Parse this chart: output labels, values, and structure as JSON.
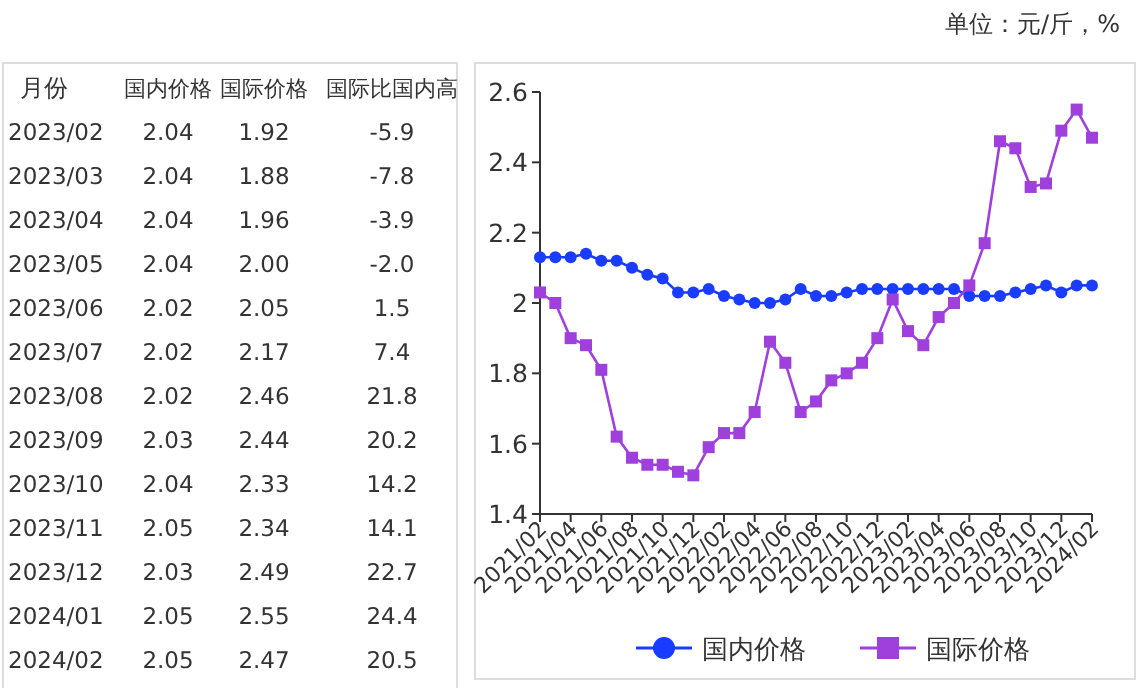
{
  "chart_data": [
    {
      "type": "other",
      "annotations": [
        "单位：元/斤，%"
      ],
      "xlabel": "月份",
      "categories": [
        "2023/02",
        "2023/03",
        "2023/04",
        "2023/05",
        "2023/06",
        "2023/07",
        "2023/08",
        "2023/09",
        "2023/10",
        "2023/11",
        "2023/12",
        "2024/01",
        "2024/02"
      ],
      "series": [
        {
          "name": "国内价格",
          "values": [
            2.04,
            2.04,
            2.04,
            2.04,
            2.02,
            2.02,
            2.02,
            2.03,
            2.04,
            2.05,
            2.03,
            2.05,
            2.05
          ],
          "value_labels": [
            "2.04",
            "2.04",
            "2.04",
            "2.04",
            "2.02",
            "2.02",
            "2.02",
            "2.03",
            "2.04",
            "2.05",
            "2.03",
            "2.05",
            "2.05"
          ]
        },
        {
          "name": "国际价格",
          "values": [
            1.92,
            1.88,
            1.96,
            2.0,
            2.05,
            2.17,
            2.46,
            2.44,
            2.33,
            2.34,
            2.49,
            2.55,
            2.47
          ],
          "value_labels": [
            "1.92",
            "1.88",
            "1.96",
            "2.00",
            "2.05",
            "2.17",
            "2.46",
            "2.44",
            "2.33",
            "2.34",
            "2.49",
            "2.55",
            "2.47"
          ]
        },
        {
          "name": "国际比国内高",
          "values": [
            -5.9,
            -7.8,
            -3.9,
            -2.0,
            1.5,
            7.4,
            21.8,
            20.2,
            14.2,
            14.1,
            22.7,
            24.4,
            20.5
          ],
          "value_labels": [
            "-5.9",
            "-7.8",
            "-3.9",
            "-2.0",
            "1.5",
            "7.4",
            "21.8",
            "20.2",
            "14.2",
            "14.1",
            "22.7",
            "24.4",
            "20.5"
          ]
        }
      ]
    },
    {
      "type": "line",
      "categories": [
        "2021/02",
        null,
        "2021/04",
        null,
        "2021/06",
        null,
        "2021/08",
        null,
        "2021/10",
        null,
        "2021/12",
        null,
        "2022/02",
        null,
        "2022/04",
        null,
        "2022/06",
        null,
        "2022/08",
        null,
        "2022/10",
        null,
        "2022/12",
        null,
        "2023/02",
        null,
        "2023/04",
        null,
        "2023/06",
        null,
        "2023/08",
        null,
        "2023/10",
        null,
        "2023/12",
        null,
        "2024/02"
      ],
      "series": [
        {
          "name": "国内价格",
          "color": "#1a3cff",
          "marker": "circle",
          "values": [
            2.13,
            2.13,
            2.13,
            2.14,
            2.12,
            2.12,
            2.1,
            2.08,
            2.07,
            2.03,
            2.03,
            2.04,
            2.02,
            2.01,
            2.0,
            2.0,
            2.01,
            2.04,
            2.02,
            2.02,
            2.03,
            2.04,
            2.04,
            2.04,
            2.04,
            2.04,
            2.04,
            2.04,
            2.02,
            2.02,
            2.02,
            2.03,
            2.04,
            2.05,
            2.03,
            2.05,
            2.05
          ]
        },
        {
          "name": "国际价格",
          "color": "#a040dc",
          "marker": "square",
          "values": [
            2.03,
            2.0,
            1.9,
            1.88,
            1.81,
            1.62,
            1.56,
            1.54,
            1.54,
            1.52,
            1.51,
            1.59,
            1.63,
            1.63,
            1.69,
            1.89,
            1.83,
            1.69,
            1.72,
            1.78,
            1.8,
            1.83,
            1.9,
            2.01,
            1.92,
            1.88,
            1.96,
            2.0,
            2.05,
            2.17,
            2.46,
            2.44,
            2.33,
            2.34,
            2.49,
            2.55,
            2.47
          ]
        }
      ],
      "ylim": [
        1.4,
        2.6
      ],
      "yticks": [
        1.4,
        1.6,
        1.8,
        2,
        2.2,
        2.4,
        2.6
      ],
      "legend": "bottom"
    }
  ]
}
